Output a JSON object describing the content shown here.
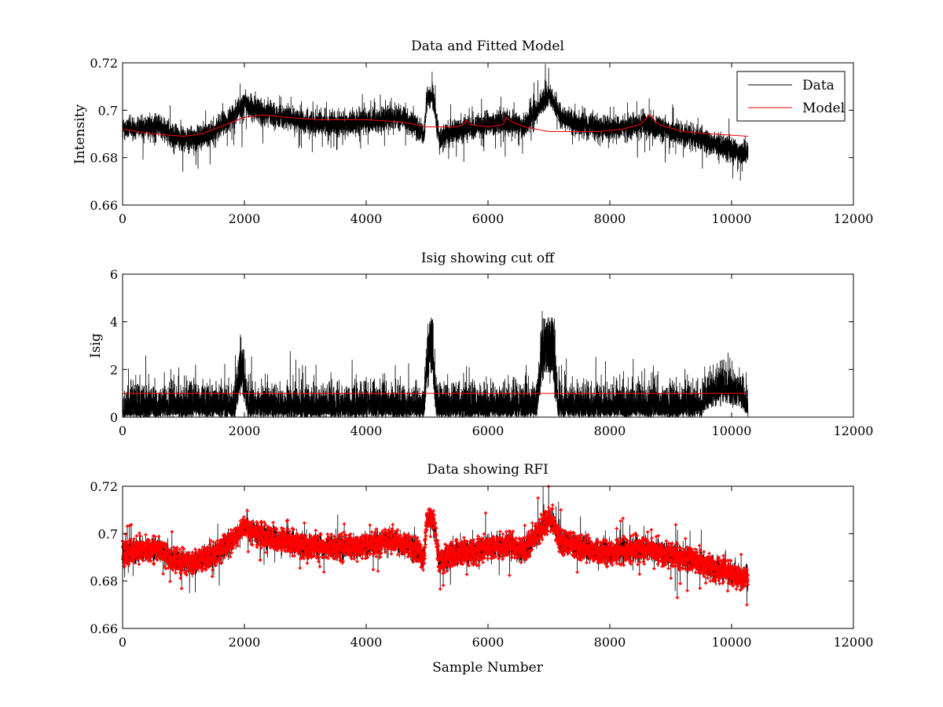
{
  "chart_data": [
    {
      "type": "line",
      "title": "Data and Fitted Model",
      "xlabel": "",
      "ylabel": "Intensity",
      "xlim": [
        0,
        12000
      ],
      "ylim": [
        0.66,
        0.72
      ],
      "xticks": [
        0,
        2000,
        4000,
        6000,
        8000,
        10000,
        12000
      ],
      "xtick_labels": [
        "0",
        "2000",
        "4000",
        "6000",
        "8000",
        "10000",
        "12000"
      ],
      "yticks": [
        0.66,
        0.68,
        0.7,
        0.72
      ],
      "ytick_labels": [
        "0.66",
        "0.68",
        "0.7",
        "0.72"
      ],
      "legend": {
        "placement": "top-right",
        "entries": [
          {
            "label": "Data",
            "color": "#000000"
          },
          {
            "label": "Model",
            "color": "#ff0000"
          }
        ]
      },
      "series": [
        {
          "name": "Data",
          "color": "#000000",
          "kind": "noisy-line",
          "n_samples": 10270,
          "x_max": 10270,
          "noise": 0.0045,
          "baseline": [
            [
              0,
              0.692
            ],
            [
              400,
              0.693
            ],
            [
              600,
              0.694
            ],
            [
              800,
              0.689
            ],
            [
              1000,
              0.688
            ],
            [
              1200,
              0.688
            ],
            [
              1500,
              0.691
            ],
            [
              1800,
              0.697
            ],
            [
              2000,
              0.703
            ],
            [
              2200,
              0.7
            ],
            [
              2500,
              0.698
            ],
            [
              3000,
              0.695
            ],
            [
              3500,
              0.694
            ],
            [
              4000,
              0.695
            ],
            [
              4500,
              0.697
            ],
            [
              4800,
              0.694
            ],
            [
              4950,
              0.69
            ],
            [
              5000,
              0.706
            ],
            [
              5100,
              0.706
            ],
            [
              5200,
              0.688
            ],
            [
              5400,
              0.691
            ],
            [
              6000,
              0.694
            ],
            [
              6300,
              0.695
            ],
            [
              6600,
              0.693
            ],
            [
              6800,
              0.7
            ],
            [
              7000,
              0.707
            ],
            [
              7200,
              0.697
            ],
            [
              7500,
              0.694
            ],
            [
              8000,
              0.692
            ],
            [
              8600,
              0.694
            ],
            [
              9000,
              0.691
            ],
            [
              9500,
              0.688
            ],
            [
              10000,
              0.683
            ],
            [
              10270,
              0.681
            ]
          ]
        },
        {
          "name": "Model",
          "color": "#ff0000",
          "kind": "line",
          "points": [
            [
              0,
              0.692
            ],
            [
              500,
              0.69
            ],
            [
              1000,
              0.689
            ],
            [
              1300,
              0.69
            ],
            [
              1600,
              0.693
            ],
            [
              1900,
              0.696
            ],
            [
              2000,
              0.697
            ],
            [
              2300,
              0.698
            ],
            [
              2700,
              0.697
            ],
            [
              3200,
              0.696
            ],
            [
              4000,
              0.696
            ],
            [
              4600,
              0.695
            ],
            [
              5000,
              0.693
            ],
            [
              5500,
              0.693
            ],
            [
              5600,
              0.694
            ],
            [
              5650,
              0.696
            ],
            [
              5700,
              0.694
            ],
            [
              6000,
              0.693
            ],
            [
              6250,
              0.694
            ],
            [
              6300,
              0.697
            ],
            [
              6400,
              0.695
            ],
            [
              6600,
              0.693
            ],
            [
              7000,
              0.691
            ],
            [
              7400,
              0.691
            ],
            [
              7800,
              0.691
            ],
            [
              8200,
              0.692
            ],
            [
              8500,
              0.694
            ],
            [
              8650,
              0.698
            ],
            [
              8800,
              0.694
            ],
            [
              9200,
              0.691
            ],
            [
              9700,
              0.69
            ],
            [
              10270,
              0.689
            ]
          ]
        }
      ]
    },
    {
      "type": "line",
      "title": "Isig showing cut off",
      "xlabel": "",
      "ylabel": "Isig",
      "xlim": [
        0,
        12000
      ],
      "ylim": [
        0,
        6
      ],
      "xticks": [
        0,
        2000,
        4000,
        6000,
        8000,
        10000,
        12000
      ],
      "xtick_labels": [
        "0",
        "2000",
        "4000",
        "6000",
        "8000",
        "10000",
        "12000"
      ],
      "yticks": [
        0,
        2,
        4,
        6
      ],
      "ytick_labels": [
        "0",
        "2",
        "4",
        "6"
      ],
      "series": [
        {
          "name": "Isig",
          "color": "#000000",
          "kind": "noisy-abs",
          "n_samples": 10270,
          "x_max": 10270,
          "bursts": [
            [
              1850,
              2050,
              1.8
            ],
            [
              4950,
              5150,
              2.8
            ],
            [
              6800,
              7150,
              3.0
            ],
            [
              9500,
              10270,
              1.0
            ]
          ],
          "gaps": [
            [
              5030,
              5100
            ],
            [
              6900,
              7100
            ]
          ]
        },
        {
          "name": "Cut off",
          "color": "#ff0000",
          "kind": "line",
          "points": [
            [
              0,
              1.0
            ],
            [
              10270,
              1.0
            ]
          ]
        }
      ]
    },
    {
      "type": "line",
      "title": "Data showing RFI",
      "xlabel": "Sample Number",
      "ylabel": "",
      "xlim": [
        0,
        12000
      ],
      "ylim": [
        0.66,
        0.72
      ],
      "xticks": [
        0,
        2000,
        4000,
        6000,
        8000,
        10000,
        12000
      ],
      "xtick_labels": [
        "0",
        "2000",
        "4000",
        "6000",
        "8000",
        "10000",
        "12000"
      ],
      "yticks": [
        0.66,
        0.68,
        0.7,
        0.72
      ],
      "ytick_labels": [
        "0.66",
        "0.68",
        "0.7",
        "0.72"
      ],
      "series": [
        {
          "name": "Data",
          "color": "#000000",
          "kind": "noisy-line",
          "n_samples": 10270,
          "x_max": 10270,
          "noise": 0.0045,
          "baseline": [
            [
              0,
              0.692
            ],
            [
              400,
              0.693
            ],
            [
              600,
              0.694
            ],
            [
              800,
              0.689
            ],
            [
              1000,
              0.688
            ],
            [
              1200,
              0.688
            ],
            [
              1500,
              0.691
            ],
            [
              1800,
              0.697
            ],
            [
              2000,
              0.703
            ],
            [
              2200,
              0.7
            ],
            [
              2500,
              0.698
            ],
            [
              3000,
              0.695
            ],
            [
              3500,
              0.694
            ],
            [
              4000,
              0.695
            ],
            [
              4500,
              0.697
            ],
            [
              4800,
              0.694
            ],
            [
              4950,
              0.69
            ],
            [
              5000,
              0.706
            ],
            [
              5100,
              0.706
            ],
            [
              5200,
              0.688
            ],
            [
              5400,
              0.691
            ],
            [
              6000,
              0.694
            ],
            [
              6300,
              0.695
            ],
            [
              6600,
              0.693
            ],
            [
              6800,
              0.7
            ],
            [
              7000,
              0.707
            ],
            [
              7200,
              0.697
            ],
            [
              7500,
              0.694
            ],
            [
              8000,
              0.692
            ],
            [
              8600,
              0.694
            ],
            [
              9000,
              0.691
            ],
            [
              9500,
              0.688
            ],
            [
              10000,
              0.683
            ],
            [
              10270,
              0.681
            ]
          ]
        },
        {
          "name": "RFI",
          "color": "#ff0000",
          "kind": "markers",
          "marker": "+",
          "source": "Data",
          "threshold": 1.0
        }
      ]
    }
  ]
}
